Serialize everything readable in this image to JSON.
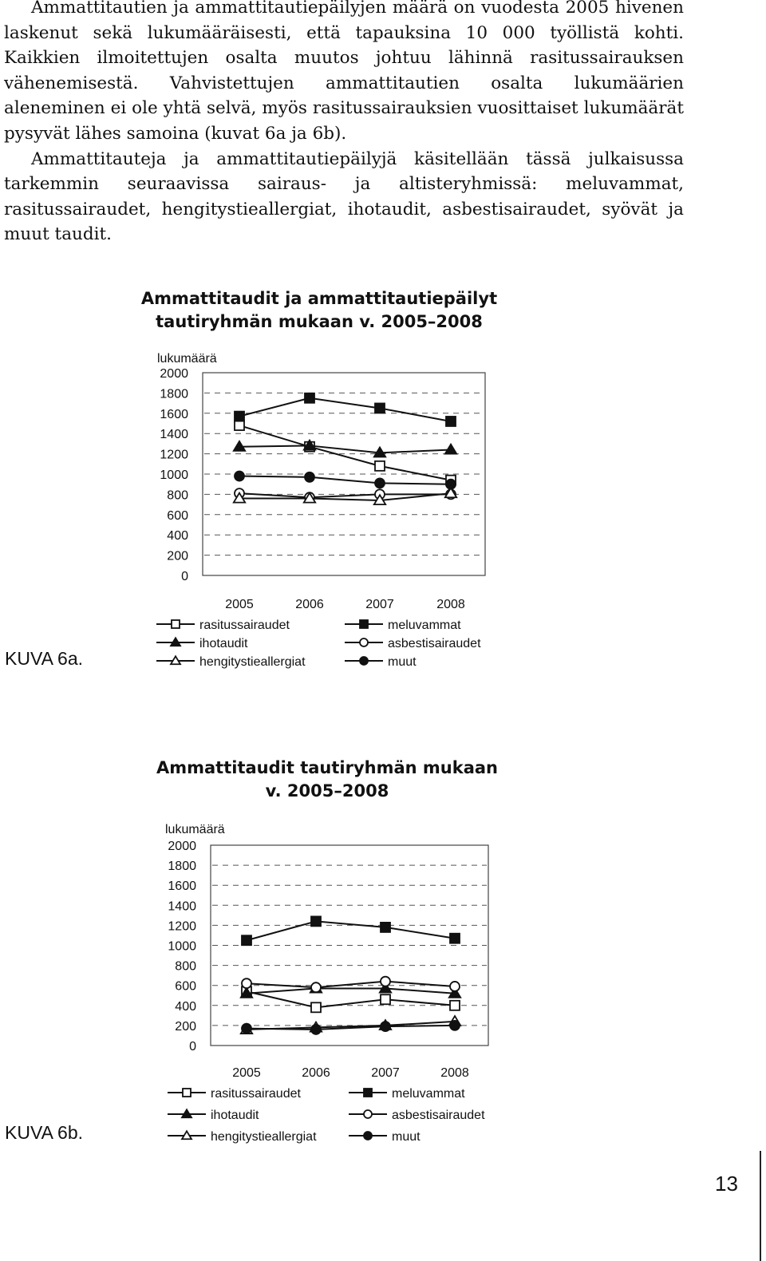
{
  "body_text": {
    "paragraphs": [
      "Ammattitautien ja ammattitautiepäilyjen määrä on vuodesta 2005 hivenen laskenut sekä lukumääräisesti, että tapauksina 10 000 työllistä kohti. Kaikkien ilmoitettujen osalta muutos johtuu lähinnä rasitussairauksen vähenemisestä. Vahvistettujen ammattitautien osalta lukumäärien aleneminen ei ole yhtä selvä, myös rasitussairauksien vuosittaiset lukumäärät pysyvät lähes samoina (kuvat 6a ja 6b).",
      "Ammattitauteja ja ammattitautiepäilyjä käsitellään tässä julkaisussa tarkemmin seuraavissa sairaus- ja altisteryhmissä: meluvammat, rasitussairaudet, hengitystieallergiat, ihotaudit, asbestisairaudet, syövät ja muut taudit."
    ]
  },
  "figure_a": {
    "label": "KUVA 6a.",
    "title_line1": "Ammattitaudit ja ammattitautiepäilyt",
    "title_line2": "tautiryhmän mukaan v. 2005–2008"
  },
  "figure_b": {
    "label": "KUVA 6b.",
    "title_line1": "Ammattitaudit tautiryhmän mukaan",
    "title_line2": "v. 2005–2008"
  },
  "page_number": "13",
  "chart_data": [
    {
      "type": "line",
      "title": "Ammattitaudit ja ammattitautiepäilyt tautiryhmän mukaan v. 2005–2008",
      "ylabel": "lukumäärä",
      "xlabel": "",
      "categories": [
        "2005",
        "2006",
        "2007",
        "2008"
      ],
      "ylim": [
        0,
        2000
      ],
      "yticks": [
        "2000",
        "1800",
        "1600",
        "1400",
        "1200",
        "1000",
        "800",
        "600",
        "400",
        "200",
        "0"
      ],
      "grid": "dashed horizontal",
      "legend": "bottom",
      "series": [
        {
          "name": "rasitussairaudet",
          "marker": "square-open",
          "values": [
            1480,
            1270,
            1080,
            940
          ]
        },
        {
          "name": "meluvammat",
          "marker": "square-filled",
          "values": [
            1570,
            1750,
            1650,
            1520
          ]
        },
        {
          "name": "ihotaudit",
          "marker": "triangle-filled",
          "values": [
            1270,
            1280,
            1210,
            1240
          ]
        },
        {
          "name": "asbestisairaudet",
          "marker": "circle-open",
          "values": [
            810,
            770,
            800,
            800
          ]
        },
        {
          "name": "hengitystieallergiat",
          "marker": "triangle-open",
          "values": [
            760,
            760,
            740,
            810
          ]
        },
        {
          "name": "muut",
          "marker": "circle-filled",
          "values": [
            980,
            970,
            910,
            900
          ]
        }
      ]
    },
    {
      "type": "line",
      "title": "Ammattitaudit tautiryhmän mukaan v. 2005–2008",
      "ylabel": "lukumäärä",
      "xlabel": "",
      "categories": [
        "2005",
        "2006",
        "2007",
        "2008"
      ],
      "ylim": [
        0,
        2000
      ],
      "yticks": [
        "2000",
        "1800",
        "1600",
        "1400",
        "1200",
        "1000",
        "800",
        "600",
        "400",
        "200",
        "0"
      ],
      "grid": "dashed horizontal",
      "legend": "bottom",
      "series": [
        {
          "name": "rasitussairaudet",
          "marker": "square-open",
          "values": [
            540,
            380,
            460,
            400
          ]
        },
        {
          "name": "meluvammat",
          "marker": "square-filled",
          "values": [
            1050,
            1240,
            1180,
            1070
          ]
        },
        {
          "name": "ihotaudit",
          "marker": "triangle-filled",
          "values": [
            520,
            570,
            570,
            520
          ]
        },
        {
          "name": "asbestisairaudet",
          "marker": "circle-open",
          "values": [
            620,
            580,
            640,
            590
          ]
        },
        {
          "name": "hengitystieallergiat",
          "marker": "triangle-open",
          "values": [
            160,
            180,
            200,
            240
          ]
        },
        {
          "name": "muut",
          "marker": "circle-filled",
          "values": [
            170,
            160,
            190,
            200
          ]
        }
      ]
    }
  ]
}
